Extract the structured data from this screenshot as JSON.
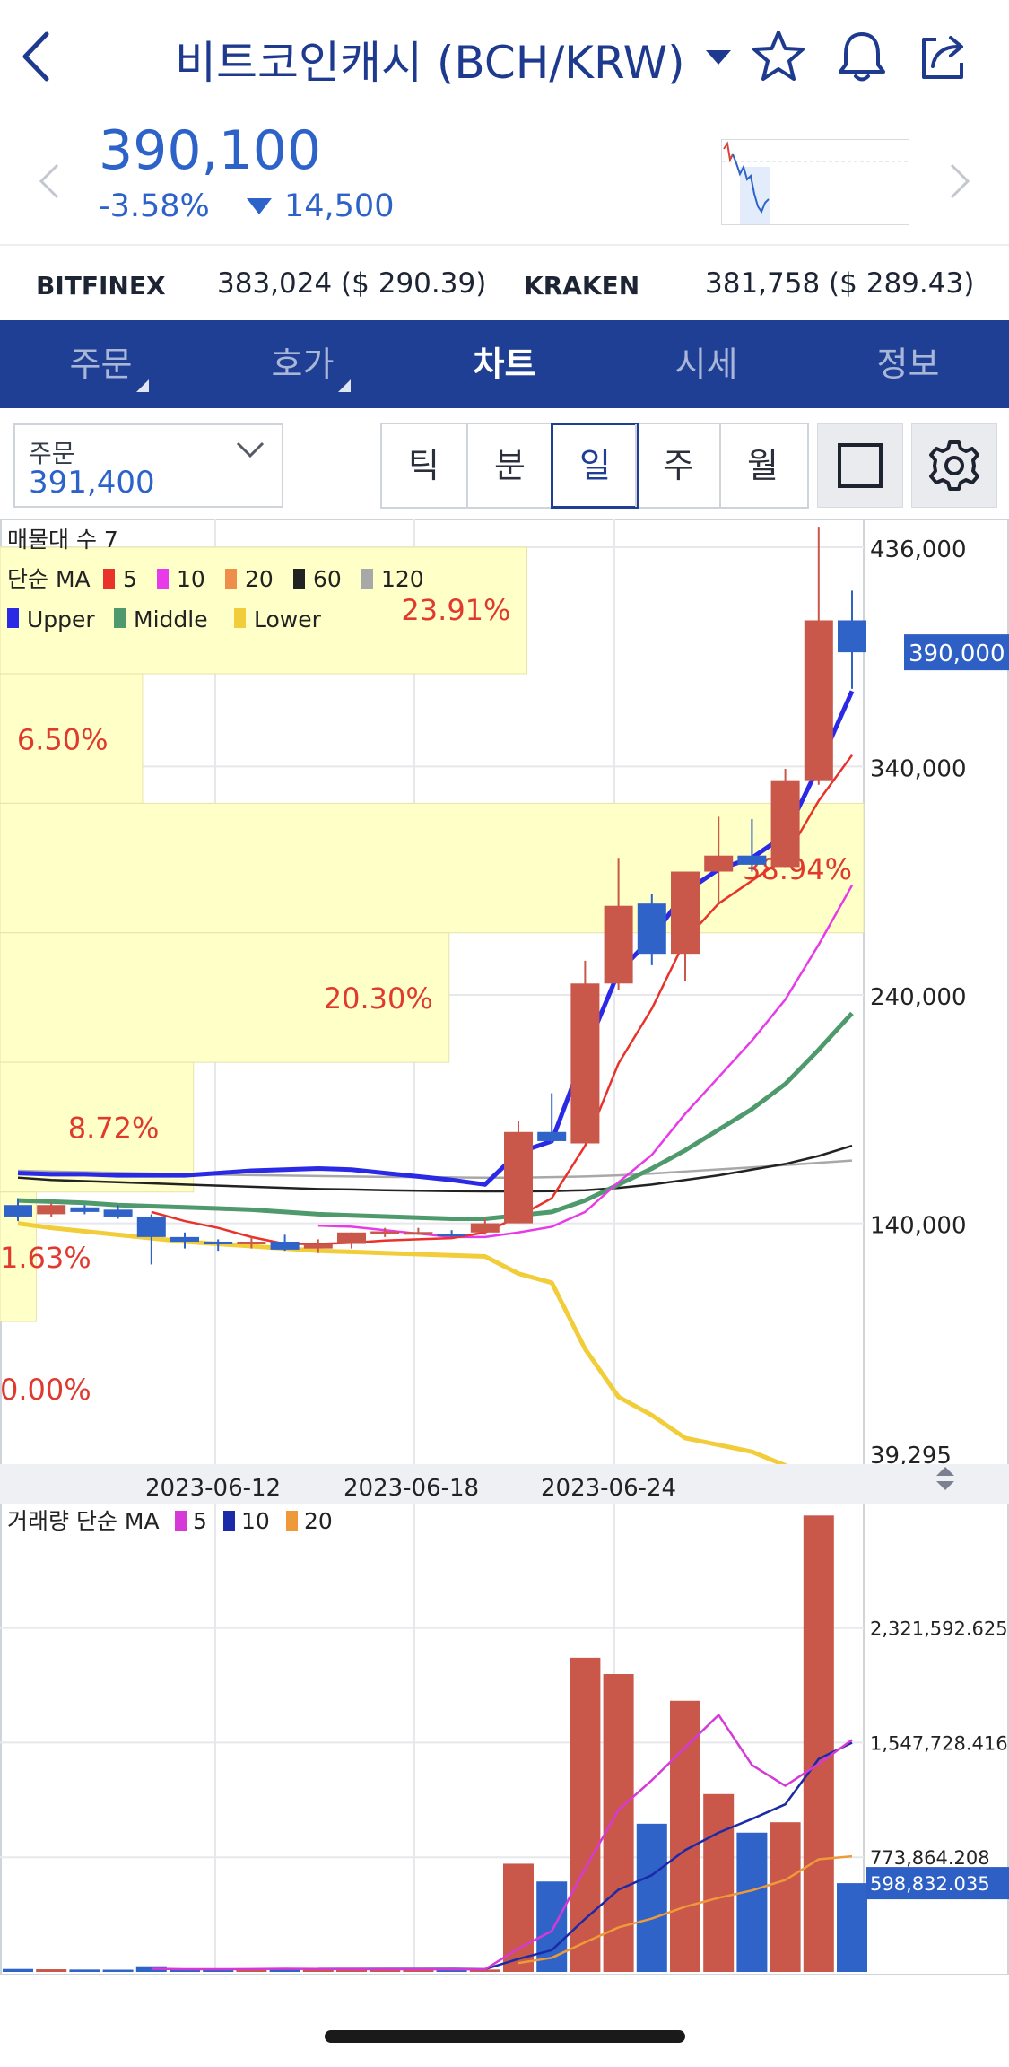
{
  "header": {
    "title": "비트코인캐시 (BCH/KRW)",
    "icons": [
      "back-chevron-icon",
      "dropdown-caret-icon",
      "star-icon",
      "bell-icon",
      "share-icon"
    ]
  },
  "price": {
    "current": "390,100",
    "change_pct": "-3.58%",
    "change_abs": "14,500",
    "color": "#2d62c9"
  },
  "exchanges": [
    {
      "name": "BITFINEX",
      "value": "383,024 ($ 290.39)"
    },
    {
      "name": "KRAKEN",
      "value": "381,758 ($ 289.43)"
    }
  ],
  "tabs": [
    {
      "label": "주문",
      "active": false,
      "corner": true
    },
    {
      "label": "호가",
      "active": false,
      "corner": true
    },
    {
      "label": "차트",
      "active": true,
      "corner": false
    },
    {
      "label": "시세",
      "active": false,
      "corner": false
    },
    {
      "label": "정보",
      "active": false,
      "corner": false
    }
  ],
  "order": {
    "label": "주문",
    "value": "391,400"
  },
  "periods": [
    {
      "label": "틱",
      "active": false
    },
    {
      "label": "분",
      "active": false
    },
    {
      "label": "일",
      "active": true
    },
    {
      "label": "주",
      "active": false
    },
    {
      "label": "월",
      "active": false
    }
  ],
  "colors": {
    "up": "#c9574a",
    "down": "#2f63c8",
    "accent": "#1f3f94",
    "profile": "#ffffc8",
    "profile_text": "#e03a2f"
  },
  "chart_data": [
    {
      "type": "candlestick",
      "y_axis_ticks": [
        "436,000",
        "340,000",
        "240,000",
        "140,000",
        "39,295"
      ],
      "ylim": [
        39295,
        436000
      ],
      "current_price_label": "390,000",
      "date_ticks": [
        "2023-06-12",
        "2023-06-18",
        "2023-06-24"
      ],
      "legend": {
        "volume_profile": "매물대 수 7",
        "ma_title": "단순 MA",
        "ma_periods": [
          {
            "label": "5",
            "color": "#e8322a"
          },
          {
            "label": "10",
            "color": "#e83ae8"
          },
          {
            "label": "20",
            "color": "#ee8e4a"
          },
          {
            "label": "60",
            "color": "#222222"
          },
          {
            "label": "120",
            "color": "#a8a8a8"
          }
        ],
        "bollinger": [
          {
            "label": "Upper",
            "color": "#2a2ae6"
          },
          {
            "label": "Middle",
            "color": "#4f9a6c"
          },
          {
            "label": "Lower",
            "color": "#f2cd3a"
          }
        ]
      },
      "volume_profile": [
        {
          "percent": "23.91%",
          "from": 380600,
          "to": 436000,
          "weight": 0.61
        },
        {
          "percent": "6.50%",
          "from": 323900,
          "to": 380600,
          "weight": 0.165
        },
        {
          "percent": "38.94%",
          "from": 267200,
          "to": 323900,
          "weight": 1.0
        },
        {
          "percent": "20.30%",
          "from": 210500,
          "to": 267200,
          "weight": 0.52
        },
        {
          "percent": "8.72%",
          "from": 153700,
          "to": 210500,
          "weight": 0.224
        },
        {
          "percent": "1.63%",
          "from": 97000,
          "to": 153700,
          "weight": 0.042
        },
        {
          "percent": "0.00%",
          "from": 39295,
          "to": 97000,
          "weight": 0.0
        }
      ],
      "candles": [
        {
          "open": 148000,
          "high": 151000,
          "low": 141000,
          "close": 143000
        },
        {
          "open": 144000,
          "high": 149000,
          "low": 143000,
          "close": 148000
        },
        {
          "open": 147000,
          "high": 148000,
          "low": 144000,
          "close": 145000
        },
        {
          "open": 146000,
          "high": 148000,
          "low": 142000,
          "close": 143000
        },
        {
          "open": 143000,
          "high": 144000,
          "low": 122000,
          "close": 134000
        },
        {
          "open": 134000,
          "high": 136000,
          "low": 129000,
          "close": 132000
        },
        {
          "open": 132000,
          "high": 133000,
          "low": 128000,
          "close": 131000
        },
        {
          "open": 131000,
          "high": 134000,
          "low": 129000,
          "close": 132000
        },
        {
          "open": 132000,
          "high": 135000,
          "low": 128000,
          "close": 128500
        },
        {
          "open": 129000,
          "high": 133000,
          "low": 127000,
          "close": 131000
        },
        {
          "open": 131000,
          "high": 136000,
          "low": 129000,
          "close": 136000
        },
        {
          "open": 136000,
          "high": 138000,
          "low": 134000,
          "close": 136500
        },
        {
          "open": 136000,
          "high": 138000,
          "low": 135000,
          "close": 136200
        },
        {
          "open": 135500,
          "high": 137000,
          "low": 134000,
          "close": 135000
        },
        {
          "open": 136000,
          "high": 142000,
          "low": 135000,
          "close": 140000
        },
        {
          "open": 140000,
          "high": 185000,
          "low": 140000,
          "close": 180000
        },
        {
          "open": 180000,
          "high": 197000,
          "low": 175000,
          "close": 176000
        },
        {
          "open": 175000,
          "high": 255000,
          "low": 175000,
          "close": 245000
        },
        {
          "open": 245000,
          "high": 300000,
          "low": 242000,
          "close": 279000
        },
        {
          "open": 280000,
          "high": 284000,
          "low": 253000,
          "close": 258000
        },
        {
          "open": 258000,
          "high": 292000,
          "low": 246000,
          "close": 294000
        },
        {
          "open": 294000,
          "high": 318000,
          "low": 280000,
          "close": 301000
        },
        {
          "open": 301000,
          "high": 317000,
          "low": 294000,
          "close": 297000
        },
        {
          "open": 296000,
          "high": 339000,
          "low": 296000,
          "close": 334000
        },
        {
          "open": 334000,
          "high": 445000,
          "low": 332000,
          "close": 404000
        },
        {
          "open": 404000,
          "high": 417000,
          "low": 374000,
          "close": 390000
        }
      ],
      "ma5": [
        null,
        null,
        null,
        null,
        145000,
        141000,
        138000,
        134000,
        131000,
        131000,
        131500,
        132500,
        133000,
        133500,
        136000,
        143000,
        151000,
        174000,
        210000,
        234000,
        264000,
        280000,
        290000,
        300000,
        325000,
        345000
      ],
      "ma10": [
        null,
        null,
        null,
        null,
        null,
        null,
        null,
        null,
        null,
        139000,
        138500,
        137000,
        135500,
        134000,
        134000,
        136000,
        138500,
        145000,
        158000,
        170000,
        188000,
        204000,
        220000,
        238000,
        262000,
        288000
      ],
      "ma60": [
        160000,
        159000,
        158500,
        158000,
        157500,
        157000,
        156500,
        156000,
        155500,
        155000,
        154800,
        154500,
        154300,
        154100,
        154000,
        154000,
        154100,
        154500,
        155500,
        157000,
        159000,
        161000,
        163500,
        166000,
        169500,
        174000
      ],
      "ma120": [
        163000,
        162700,
        162400,
        162100,
        161800,
        161500,
        161300,
        161100,
        160900,
        160700,
        160500,
        160300,
        160200,
        160100,
        160000,
        160000,
        160200,
        160500,
        161000,
        161800,
        162700,
        163600,
        164500,
        165500,
        166500,
        167500
      ],
      "boll_upper": [
        162000,
        161500,
        161500,
        161000,
        161000,
        161000,
        162000,
        163000,
        163500,
        164000,
        163500,
        162000,
        160500,
        159000,
        157000,
        171000,
        176000,
        215000,
        250000,
        265000,
        285000,
        295000,
        300000,
        310000,
        340000,
        373000
      ],
      "boll_middle": [
        150000,
        149500,
        149000,
        148000,
        147500,
        147000,
        146500,
        146000,
        145000,
        144000,
        143500,
        143000,
        142500,
        142000,
        142000,
        143500,
        145000,
        150000,
        157000,
        164000,
        172000,
        181000,
        190000,
        201000,
        216000,
        232000
      ],
      "boll_lower": [
        140000,
        138000,
        136500,
        135000,
        133500,
        132000,
        131000,
        130000,
        129000,
        128000,
        127500,
        127000,
        126500,
        126000,
        125500,
        118000,
        114000,
        85000,
        64000,
        56000,
        46000,
        43000,
        40000,
        34000,
        27000,
        25000
      ]
    },
    {
      "type": "bar",
      "legend": {
        "title": "거래량 단순 MA",
        "ma_periods": [
          {
            "label": "5",
            "color": "#d63ad6"
          },
          {
            "label": "10",
            "color": "#1a2aa8"
          },
          {
            "label": "20",
            "color": "#ee9a3a"
          }
        ]
      },
      "y_axis_ticks": [
        "2,321,592.625",
        "1,547,728.416",
        "773,864.208"
      ],
      "ylim": [
        0,
        3100000
      ],
      "current_volume_label": "598,832.035",
      "volumes": [
        20000,
        18000,
        16000,
        15000,
        38000,
        22000,
        20000,
        18000,
        20000,
        18000,
        18000,
        17000,
        18000,
        17000,
        16000,
        730000,
        610000,
        2120000,
        2010000,
        1000000,
        1830000,
        1200000,
        940000,
        1010000,
        3080000,
        598832
      ],
      "vol_ma5": [
        null,
        null,
        null,
        null,
        21400,
        18200,
        18200,
        19000,
        21400,
        19600,
        18800,
        18400,
        18200,
        17600,
        17200,
        157600,
        275600,
        698200,
        1093200,
        1294000,
        1514000,
        1734000,
        1396000,
        1256000,
        1404000,
        1566000
      ],
      "vol_ma10": [
        null,
        null,
        null,
        null,
        null,
        null,
        null,
        null,
        null,
        20500,
        20300,
        20200,
        20500,
        20700,
        18300,
        87500,
        146500,
        357900,
        555000,
        652800,
        822000,
        940000,
        1032000,
        1131000,
        1437000,
        1547000
      ],
      "vol_ma20": [
        null,
        null,
        null,
        null,
        null,
        null,
        null,
        null,
        null,
        null,
        null,
        null,
        null,
        null,
        null,
        60000,
        95000,
        200000,
        300000,
        360000,
        440000,
        500000,
        550000,
        620000,
        760000,
        780000
      ]
    }
  ]
}
